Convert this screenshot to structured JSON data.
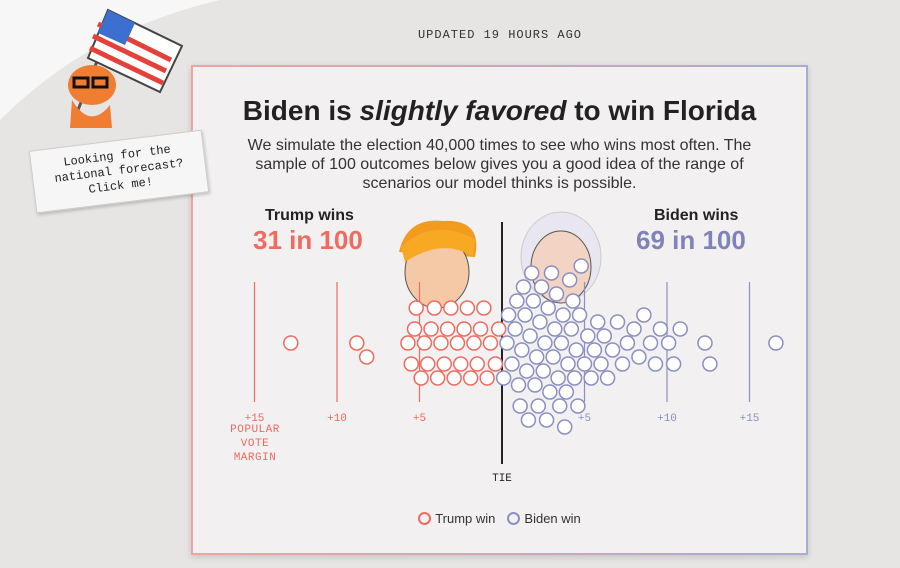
{
  "header": {
    "updated": "UPDATED 19 HOURS AGO"
  },
  "promo": {
    "text": "Looking for the national forecast? Click me!"
  },
  "headline": {
    "before": "Biden is ",
    "emphasis": "slightly favored",
    "after": " to win Florida"
  },
  "description": "We simulate the election 40,000 times to see who wins most often. The sample of 100 outcomes below gives you a good idea of the range of scenarios our model thinks is possible.",
  "summary": [
    {
      "name": "Trump wins",
      "odds": "31 in 100"
    },
    {
      "name": "Biden wins",
      "odds": "69 in 100"
    }
  ],
  "chart_data": {
    "type": "beeswarm",
    "xlabel": "POPULAR VOTE MARGIN",
    "xlim": [
      -18,
      18
    ],
    "xticks": [
      {
        "value": -15,
        "label": "+15"
      },
      {
        "value": -10,
        "label": "+10"
      },
      {
        "value": -5,
        "label": "+5"
      },
      {
        "value": 0,
        "label": "TIE"
      },
      {
        "value": 5,
        "label": "+5"
      },
      {
        "value": 10,
        "label": "+10"
      },
      {
        "value": 15,
        "label": "+15"
      }
    ],
    "series": [
      {
        "name": "Trump win",
        "color": "#ef6b5f",
        "values": [
          -12.8,
          -8.8,
          -8.2,
          -5.7,
          -5.5,
          -5.3,
          -5.2,
          -4.9,
          -4.7,
          -4.5,
          -4.3,
          -4.1,
          -3.9,
          -3.7,
          -3.5,
          -3.3,
          -3.1,
          -2.9,
          -2.7,
          -2.5,
          -2.3,
          -2.1,
          -1.9,
          -1.7,
          -1.5,
          -1.3,
          -1.1,
          -0.9,
          -0.7,
          -0.4,
          -0.2
        ]
      },
      {
        "name": "Biden win",
        "color": "#8b8fc1",
        "values": [
          0.1,
          0.3,
          0.4,
          0.6,
          0.8,
          0.9,
          1.0,
          1.1,
          1.2,
          1.3,
          1.4,
          1.5,
          1.6,
          1.7,
          1.8,
          1.9,
          2.0,
          2.1,
          2.2,
          2.3,
          2.4,
          2.5,
          2.6,
          2.7,
          2.8,
          2.9,
          3.0,
          3.1,
          3.2,
          3.3,
          3.4,
          3.5,
          3.6,
          3.7,
          3.8,
          3.9,
          4.0,
          4.1,
          4.2,
          4.3,
          4.4,
          4.5,
          4.6,
          4.7,
          4.8,
          5.0,
          5.2,
          5.4,
          5.6,
          5.8,
          6.0,
          6.2,
          6.4,
          6.7,
          7.0,
          7.3,
          7.6,
          8.0,
          8.3,
          8.6,
          9.0,
          9.3,
          9.6,
          10.1,
          10.4,
          10.8,
          12.3,
          12.6,
          16.6
        ]
      }
    ]
  }
}
